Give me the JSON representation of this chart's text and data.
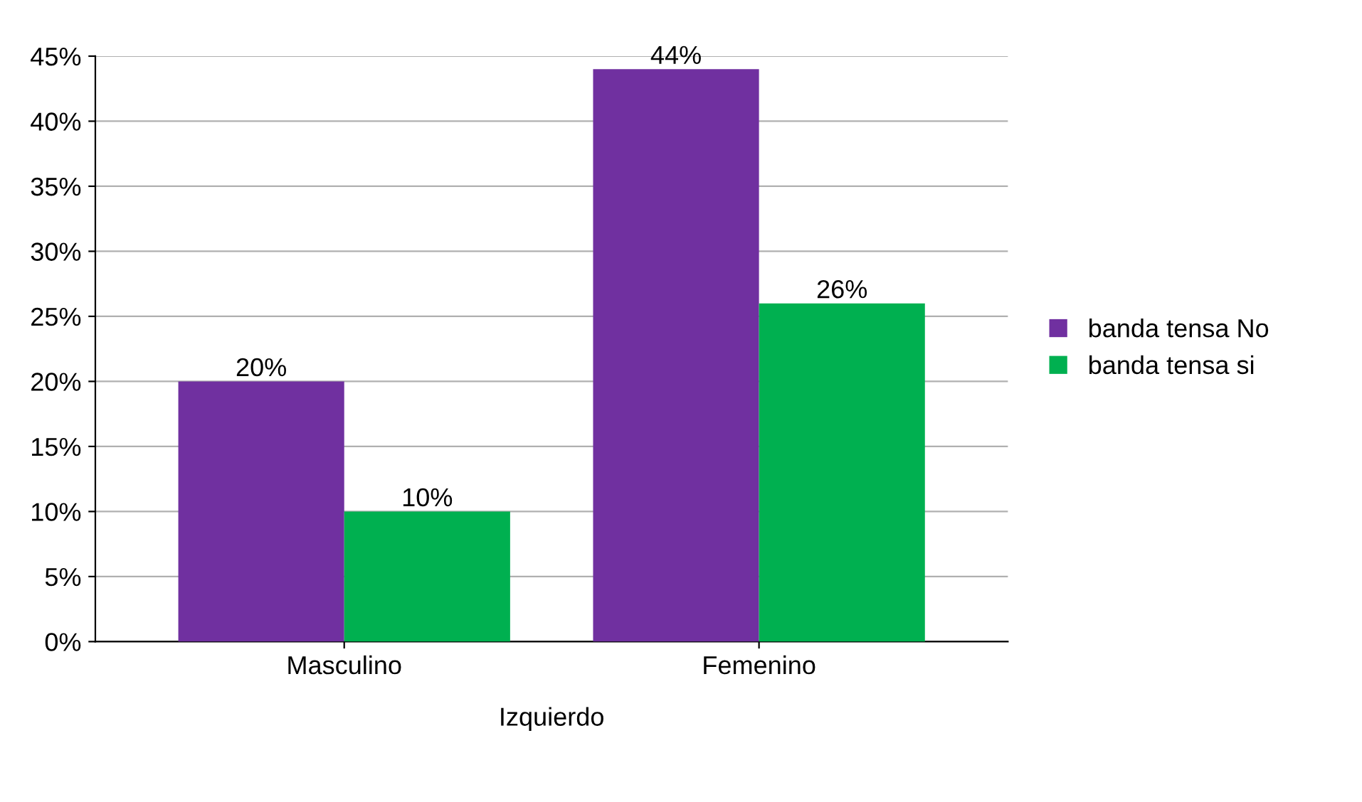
{
  "chart_data": {
    "type": "bar",
    "categories": [
      "Masculino",
      "Femenino"
    ],
    "xlabel": "Izquierdo",
    "series": [
      {
        "name": "banda tensa No",
        "color": "#7030a0",
        "values": [
          20,
          44
        ],
        "value_labels": [
          "20%",
          "44%"
        ]
      },
      {
        "name": "banda tensa si",
        "color": "#00b050",
        "values": [
          10,
          26
        ],
        "value_labels": [
          "10%",
          "26%"
        ]
      }
    ],
    "ylim": [
      0,
      45
    ],
    "yticks": [
      {
        "value": 0,
        "label": "0%"
      },
      {
        "value": 5,
        "label": "5%"
      },
      {
        "value": 10,
        "label": "10%"
      },
      {
        "value": 15,
        "label": "15%"
      },
      {
        "value": 20,
        "label": "20%"
      },
      {
        "value": 25,
        "label": "25%"
      },
      {
        "value": 30,
        "label": "30%"
      },
      {
        "value": 35,
        "label": "35%"
      },
      {
        "value": 40,
        "label": "40%"
      },
      {
        "value": 45,
        "label": "45%"
      }
    ],
    "grid": "y",
    "legend": "right"
  }
}
